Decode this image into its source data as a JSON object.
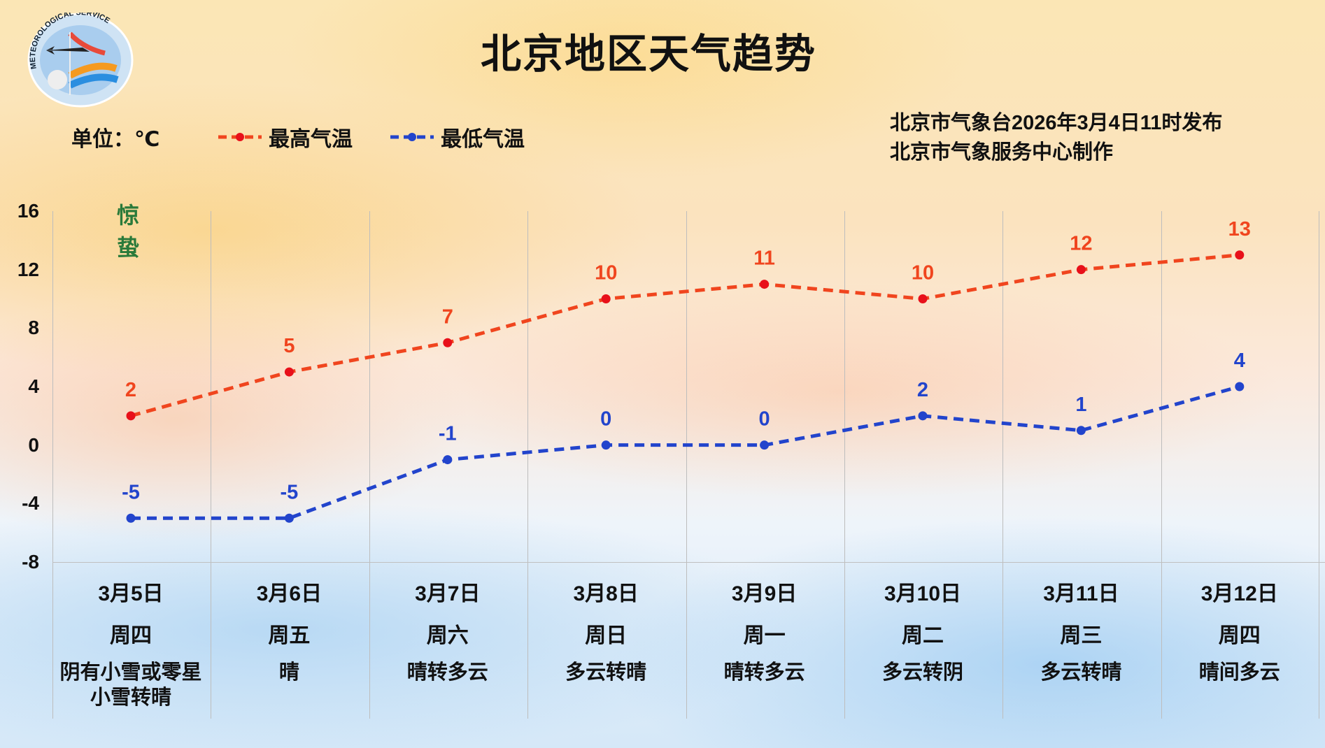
{
  "header": {
    "title": "北京地区天气趋势",
    "logo_text": "BEIJING METEOROLOGICAL SERVICE 气象北京",
    "unit_label": "单位：℃",
    "issued": "北京市气象台2026年3月4日11时发布",
    "producer": "北京市气象服务中心制作"
  },
  "solar_term": "惊蛰",
  "colors": {
    "high": "#f0451e",
    "high_dot": "#e8101a",
    "low": "#2244cc",
    "term": "#2a7a3a"
  },
  "chart_data": {
    "type": "line",
    "title": "北京地区天气趋势",
    "ylabel": "单位：℃",
    "ylim": [
      -8,
      16
    ],
    "yticks": [
      "16",
      "12",
      "8",
      "4",
      "0",
      "-4",
      "-8"
    ],
    "grid": "vertical",
    "legend_placement": "top-left",
    "categories": [
      "3月5日",
      "3月6日",
      "3月7日",
      "3月8日",
      "3月9日",
      "3月10日",
      "3月11日",
      "3月12日"
    ],
    "weekdays": [
      "周四",
      "周五",
      "周六",
      "周日",
      "周一",
      "周二",
      "周三",
      "周四"
    ],
    "weather": [
      [
        "阴有小雪或零星",
        "小雪转晴"
      ],
      [
        "晴"
      ],
      [
        "晴转多云"
      ],
      [
        "多云转晴"
      ],
      [
        "晴转多云"
      ],
      [
        "多云转阴"
      ],
      [
        "多云转晴"
      ],
      [
        "晴间多云"
      ]
    ],
    "series": [
      {
        "name": "最高气温",
        "values": [
          2,
          5,
          7,
          10,
          11,
          10,
          12,
          13
        ]
      },
      {
        "name": "最低气温",
        "values": [
          -5,
          -5,
          -1,
          0,
          0,
          2,
          1,
          4
        ]
      }
    ]
  }
}
